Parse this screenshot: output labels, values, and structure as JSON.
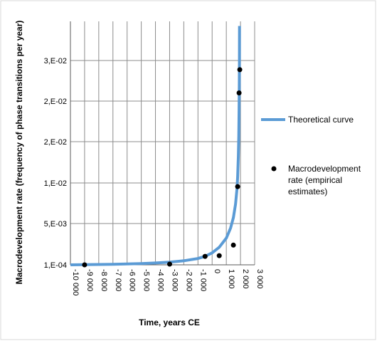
{
  "chart_data": {
    "type": "scatter",
    "title": "",
    "xlabel": "Time, years CE",
    "ylabel": "Macrodevelopment rate (frequency of phase transitions per year)",
    "xlim": [
      -10000,
      3000
    ],
    "x_ticks": [
      -10000,
      -9000,
      -8000,
      -7000,
      -6000,
      -5000,
      -4000,
      -3000,
      -2000,
      -1000,
      0,
      1000,
      2000,
      3000
    ],
    "x_tick_labels": [
      "-10 000",
      "-9 000",
      "-8 000",
      "-7 000",
      "-6 000",
      "-5 000",
      "-4 000",
      "-3 000",
      "-2 000",
      "-1 000",
      "0",
      "1 000",
      "2 000",
      "3 000"
    ],
    "y_tick_labels": [
      "1,E-04",
      "5,E-03",
      "1,E-02",
      "2,E-02",
      "2,E-02",
      "3,E-02"
    ],
    "gridlines": true,
    "legend_position": "right",
    "colors": {
      "theoretical": "#5b9bd5",
      "empirical": "#000000"
    },
    "series": [
      {
        "name": "Theoretical curve",
        "kind": "line",
        "x": [
          -10000,
          -9000,
          -8000,
          -7000,
          -6000,
          -5000,
          -4000,
          -3000,
          -2000,
          -1000,
          -500,
          0,
          500,
          1000,
          1300,
          1500,
          1650,
          1750,
          1800,
          1850,
          1880,
          1900,
          1915,
          1925,
          1930
        ],
        "y": [
          0.0001,
          0.00012,
          0.00015,
          0.00018,
          0.00022,
          0.00028,
          0.00036,
          0.00048,
          0.00068,
          0.001,
          0.0013,
          0.0018,
          0.0026,
          0.0039,
          0.0053,
          0.0068,
          0.0087,
          0.0108,
          0.0126,
          0.0156,
          0.0184,
          0.022,
          0.0255,
          0.029,
          0.034
        ]
      },
      {
        "name": "Macrodevelopment rate (empirical estimates)",
        "kind": "scatter",
        "x": [
          -9000,
          -3000,
          -500,
          500,
          1500,
          1800,
          1900,
          1950
        ],
        "y": [
          0.0001,
          0.0002,
          0.0013,
          0.0014,
          0.0029,
          0.0112,
          0.0245,
          0.0278
        ]
      }
    ]
  }
}
